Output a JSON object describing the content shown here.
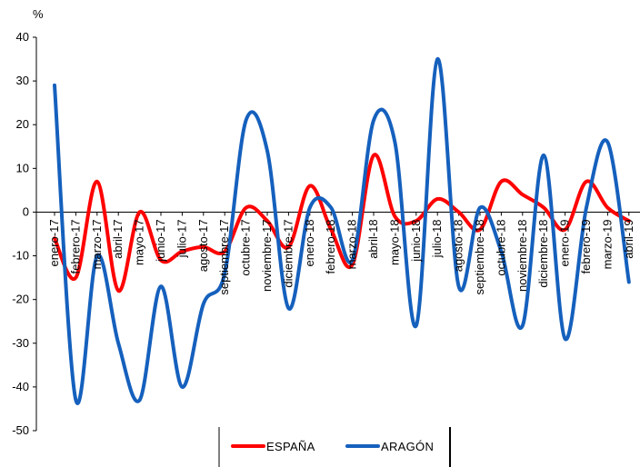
{
  "chart_data": {
    "type": "line",
    "ylabel": "%",
    "ylim": [
      -50,
      40
    ],
    "yticks": [
      40,
      30,
      20,
      10,
      0,
      -10,
      -20,
      -30,
      -40,
      -50
    ],
    "grid": false,
    "legend_position": "bottom",
    "categories": [
      "enero-17",
      "febrero-17",
      "marzo-17",
      "abril-17",
      "mayo-17",
      "junio-17",
      "julio-17",
      "agosto-17",
      "septiembre-17",
      "octubre-17",
      "noviembre-17",
      "diciembre-17",
      "enero-18",
      "febrero-18",
      "marzo-18",
      "abril-18",
      "mayo-18",
      "junio-18",
      "julio-18",
      "agosto-18",
      "septiembre-18",
      "octubre-18",
      "noviembre-18",
      "diciembre-18",
      "enero-19",
      "febrero-19",
      "marzo-19",
      "abril-19"
    ],
    "series": [
      {
        "name": "ESPAÑA",
        "color": "#ff0000",
        "values": [
          -6,
          -15,
          7,
          -18,
          0,
          -11,
          -9,
          -8,
          -9,
          1,
          -2,
          -8,
          6,
          -4,
          -12,
          13,
          -1,
          -2,
          3,
          0,
          -4,
          7,
          4,
          1,
          -4,
          7,
          1,
          -2
        ]
      },
      {
        "name": "ARAGÓN",
        "color": "#1560bd",
        "values": [
          29,
          -43,
          -10,
          -30,
          -43,
          -17,
          -40,
          -21,
          -14,
          21,
          14,
          -22,
          1,
          1,
          -11,
          21,
          16,
          -26,
          35,
          -17,
          1,
          -9,
          -26,
          13,
          -29,
          1,
          16,
          -16
        ]
      }
    ]
  }
}
